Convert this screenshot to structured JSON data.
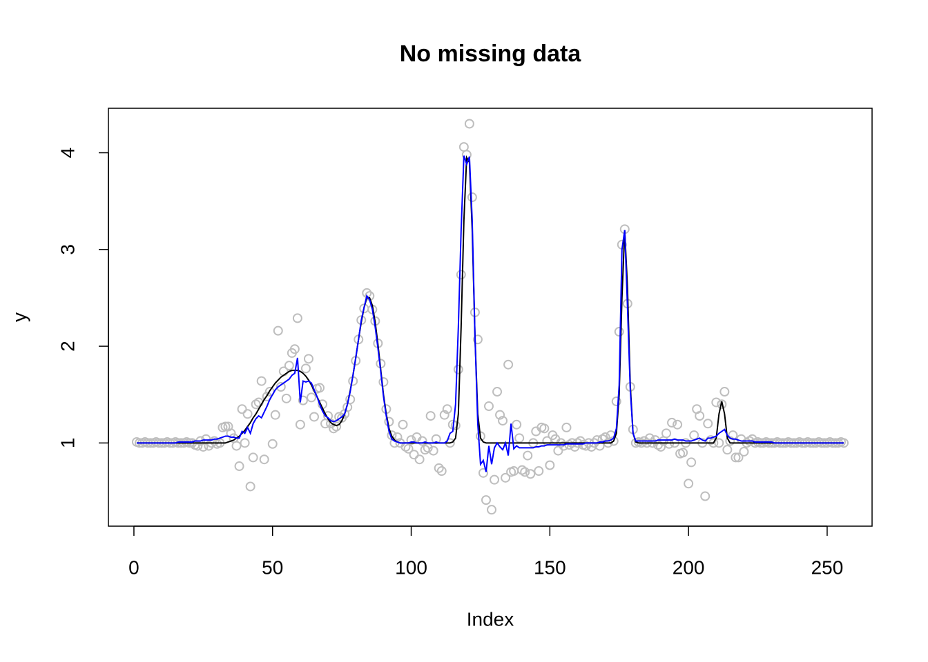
{
  "chart_data": {
    "type": "scatter",
    "title": "No missing data",
    "xlabel": "Index",
    "ylabel": "y",
    "xlim": [
      -9.2,
      266.2
    ],
    "ylim": [
      0.14,
      4.46
    ],
    "xticks": [
      0,
      50,
      100,
      150,
      200,
      250
    ],
    "yticks": [
      1,
      2,
      3,
      4
    ],
    "x": [
      1,
      2,
      3,
      4,
      5,
      6,
      7,
      8,
      9,
      10,
      11,
      12,
      13,
      14,
      15,
      16,
      17,
      18,
      19,
      20,
      21,
      22,
      23,
      24,
      25,
      26,
      27,
      28,
      29,
      30,
      31,
      32,
      33,
      34,
      35,
      36,
      37,
      38,
      39,
      40,
      41,
      42,
      43,
      44,
      45,
      46,
      47,
      48,
      49,
      50,
      51,
      52,
      53,
      54,
      55,
      56,
      57,
      58,
      59,
      60,
      61,
      62,
      63,
      64,
      65,
      66,
      67,
      68,
      69,
      70,
      71,
      72,
      73,
      74,
      75,
      76,
      77,
      78,
      79,
      80,
      81,
      82,
      83,
      84,
      85,
      86,
      87,
      88,
      89,
      90,
      91,
      92,
      93,
      94,
      95,
      96,
      97,
      98,
      99,
      100,
      101,
      102,
      103,
      104,
      105,
      106,
      107,
      108,
      109,
      110,
      111,
      112,
      113,
      114,
      115,
      116,
      117,
      118,
      119,
      120,
      121,
      122,
      123,
      124,
      125,
      126,
      127,
      128,
      129,
      130,
      131,
      132,
      133,
      134,
      135,
      136,
      137,
      138,
      139,
      140,
      141,
      142,
      143,
      144,
      145,
      146,
      147,
      148,
      149,
      150,
      151,
      152,
      153,
      154,
      155,
      156,
      157,
      158,
      159,
      160,
      161,
      162,
      163,
      164,
      165,
      166,
      167,
      168,
      169,
      170,
      171,
      172,
      173,
      174,
      175,
      176,
      177,
      178,
      179,
      180,
      181,
      182,
      183,
      184,
      185,
      186,
      187,
      188,
      189,
      190,
      191,
      192,
      193,
      194,
      195,
      196,
      197,
      198,
      199,
      200,
      201,
      202,
      203,
      204,
      205,
      206,
      207,
      208,
      209,
      210,
      211,
      212,
      213,
      214,
      215,
      216,
      217,
      218,
      219,
      220,
      221,
      222,
      223,
      224,
      225,
      226,
      227,
      228,
      229,
      230,
      231,
      232,
      233,
      234,
      235,
      236,
      237,
      238,
      239,
      240,
      241,
      242,
      243,
      244,
      245,
      246,
      247,
      248,
      249,
      250,
      251,
      252,
      253,
      254,
      255,
      256
    ],
    "series": [
      {
        "style": "points",
        "color": "#bebebe",
        "values": [
          1.01,
          1.0,
          1.0,
          1.01,
          1.0,
          1.0,
          1.0,
          1.01,
          1.0,
          1.0,
          1.0,
          1.01,
          1.0,
          1.0,
          1.01,
          1.0,
          1.0,
          1.0,
          1.01,
          1.0,
          1.0,
          0.98,
          0.97,
          1.02,
          0.96,
          1.04,
          0.97,
          1.0,
          1.02,
          0.99,
          1.0,
          1.16,
          1.17,
          1.17,
          1.1,
          1.05,
          0.97,
          0.76,
          1.35,
          1.0,
          1.3,
          0.55,
          0.85,
          1.4,
          1.42,
          1.64,
          0.83,
          1.48,
          1.53,
          0.99,
          1.29,
          2.16,
          1.58,
          1.74,
          1.46,
          1.8,
          1.93,
          1.97,
          2.29,
          1.19,
          1.44,
          1.77,
          1.87,
          1.47,
          1.27,
          1.56,
          1.57,
          1.4,
          1.2,
          1.28,
          1.2,
          1.15,
          1.17,
          1.27,
          1.26,
          1.3,
          1.37,
          1.45,
          1.64,
          1.85,
          2.07,
          2.27,
          2.39,
          2.55,
          2.52,
          2.38,
          2.26,
          2.03,
          1.82,
          1.63,
          1.35,
          1.22,
          1.08,
          1.0,
          1.06,
          1.0,
          1.19,
          0.96,
          0.94,
          1.03,
          0.88,
          1.06,
          0.83,
          1.02,
          0.93,
          0.95,
          1.28,
          0.92,
          1.04,
          0.74,
          0.71,
          1.29,
          1.35,
          1.0,
          1.19,
          1.18,
          1.76,
          2.74,
          4.06,
          3.98,
          4.3,
          3.54,
          2.35,
          2.07,
          1.07,
          0.69,
          0.41,
          1.38,
          0.31,
          0.62,
          1.53,
          1.29,
          1.23,
          0.64,
          1.81,
          0.7,
          0.71,
          1.19,
          1.05,
          0.72,
          0.7,
          0.87,
          0.68,
          1.0,
          1.12,
          0.71,
          1.16,
          1.15,
          1.02,
          0.77,
          1.08,
          1.04,
          0.92,
          1.0,
          0.97,
          1.16,
          0.98,
          1.0,
          0.96,
          1.0,
          1.02,
          0.98,
          0.97,
          1.0,
          0.96,
          1.0,
          1.03,
          0.97,
          1.04,
          1.06,
          1.0,
          1.08,
          1.02,
          1.43,
          2.15,
          3.05,
          3.21,
          2.44,
          1.58,
          1.14,
          1.0,
          1.01,
          1.0,
          1.02,
          1.0,
          1.05,
          1.0,
          1.03,
          0.98,
          0.96,
          1.02,
          1.1,
          0.99,
          1.21,
          1.0,
          1.19,
          0.89,
          0.9,
          1.0,
          0.58,
          0.8,
          1.08,
          1.35,
          1.28,
          1.0,
          0.45,
          1.2,
          1.03,
          1.0,
          1.42,
          1.0,
          1.4,
          1.53,
          0.93,
          1.02,
          1.08,
          0.85,
          0.85,
          1.04,
          0.91,
          1.0,
          1.02,
          1.04,
          1.0,
          1.01,
          1.0,
          1.0,
          1.01,
          1.0,
          1.0,
          1.0,
          1.01,
          1.0,
          1.0,
          1.0,
          1.01,
          1.0,
          1.0,
          1.0,
          1.01,
          1.0,
          1.0,
          1.01,
          1.0,
          1.0,
          1.0,
          1.01,
          1.0,
          1.0,
          1.0,
          1.01,
          1.0,
          1.0,
          1.0,
          1.01,
          1.0
        ]
      },
      {
        "style": "line",
        "color": "#000000",
        "values": [
          1,
          1,
          1,
          1,
          1,
          1,
          1,
          1,
          1,
          1,
          1,
          1,
          1,
          1,
          1,
          1,
          1,
          1,
          1,
          1,
          1,
          1,
          1,
          1,
          1,
          1,
          1,
          1,
          1,
          1,
          1,
          1,
          1,
          1.01,
          1.02,
          1.03,
          1.05,
          1.07,
          1.1,
          1.13,
          1.17,
          1.21,
          1.26,
          1.3,
          1.35,
          1.4,
          1.45,
          1.49,
          1.54,
          1.58,
          1.62,
          1.65,
          1.68,
          1.7,
          1.72,
          1.74,
          1.75,
          1.75,
          1.75,
          1.74,
          1.72,
          1.69,
          1.65,
          1.6,
          1.54,
          1.48,
          1.42,
          1.36,
          1.3,
          1.25,
          1.21,
          1.19,
          1.18,
          1.19,
          1.23,
          1.3,
          1.4,
          1.54,
          1.7,
          1.88,
          2.07,
          2.25,
          2.4,
          2.5,
          2.5,
          2.42,
          2.25,
          2.02,
          1.76,
          1.5,
          1.3,
          1.15,
          1.07,
          1.03,
          1.01,
          1,
          1,
          1,
          1,
          1,
          1,
          1,
          1,
          1,
          1,
          1,
          1,
          1,
          1,
          1,
          1,
          1,
          1,
          1,
          1.01,
          1.05,
          1.3,
          2.2,
          3.3,
          3.95,
          3.9,
          3.2,
          2.1,
          1.3,
          1.05,
          1.01,
          1,
          1,
          1,
          1,
          1,
          1,
          1,
          1,
          1,
          1,
          1,
          1,
          1,
          1,
          1,
          1,
          1,
          1,
          1,
          1,
          1,
          1,
          1,
          1,
          1,
          1,
          1,
          1,
          1,
          1,
          1,
          1,
          1,
          1,
          1,
          1,
          1,
          1,
          1,
          1,
          1,
          1,
          1,
          1,
          1,
          1,
          1.02,
          1.1,
          1.5,
          2.5,
          3.2,
          2.6,
          1.6,
          1.1,
          1.01,
          1,
          1,
          1,
          1,
          1,
          1,
          1,
          1,
          1,
          1,
          1,
          1,
          1,
          1,
          1,
          1,
          1,
          1,
          1,
          1,
          1,
          1,
          1,
          1,
          1,
          1,
          1,
          1,
          1.05,
          1.3,
          1.43,
          1.3,
          1.05,
          1,
          1,
          1,
          1,
          1,
          1,
          1,
          1,
          1,
          1,
          1,
          1,
          1,
          1,
          1,
          1,
          1,
          1,
          1,
          1,
          1,
          1,
          1,
          1,
          1,
          1,
          1,
          1,
          1,
          1,
          1,
          1,
          1,
          1,
          1,
          1,
          1,
          1,
          1,
          1,
          1,
          1
        ]
      },
      {
        "style": "line",
        "color": "#0000ff",
        "values": [
          1,
          1,
          1,
          1,
          1,
          1,
          1,
          1,
          1,
          1,
          1,
          1,
          1,
          1,
          1,
          1.01,
          1.01,
          1.01,
          1.01,
          1.01,
          1.01,
          1.02,
          1.02,
          1.02,
          1.03,
          1.03,
          1.03,
          1.03,
          1.04,
          1.04,
          1.05,
          1.06,
          1.07,
          1.07,
          1.06,
          1.06,
          1.05,
          1.05,
          1.12,
          1.1,
          1.16,
          1.1,
          1.2,
          1.25,
          1.28,
          1.26,
          1.32,
          1.38,
          1.45,
          1.5,
          1.55,
          1.58,
          1.6,
          1.62,
          1.64,
          1.66,
          1.7,
          1.72,
          1.88,
          1.42,
          1.64,
          1.63,
          1.64,
          1.62,
          1.55,
          1.48,
          1.4,
          1.33,
          1.28,
          1.26,
          1.23,
          1.22,
          1.23,
          1.25,
          1.27,
          1.3,
          1.4,
          1.53,
          1.7,
          1.88,
          2.07,
          2.27,
          2.4,
          2.52,
          2.48,
          2.38,
          2.2,
          1.98,
          1.74,
          1.48,
          1.28,
          1.12,
          1.04,
          1.02,
          1.01,
          1.0,
          1.0,
          1.0,
          1.0,
          1.01,
          1.01,
          1.0,
          1.0,
          1.0,
          1.01,
          1.0,
          1.0,
          1.0,
          1.01,
          1.0,
          1.0,
          1.0,
          1.02,
          1.1,
          1.12,
          1.4,
          2.2,
          3.2,
          3.97,
          3.88,
          3.96,
          3.3,
          2.1,
          1.2,
          0.78,
          0.82,
          0.7,
          0.97,
          0.78,
          0.95,
          1.0,
          0.96,
          0.93,
          1.0,
          0.87,
          1.2,
          0.94,
          0.97,
          0.95,
          0.95,
          0.95,
          0.95,
          0.95,
          0.95,
          0.96,
          0.96,
          0.97,
          0.97,
          0.98,
          0.98,
          0.98,
          0.98,
          0.98,
          0.98,
          0.98,
          0.99,
          0.99,
          0.99,
          0.99,
          0.99,
          0.99,
          0.99,
          1.0,
          1.0,
          1.0,
          1.0,
          1.0,
          1.01,
          1.01,
          1.02,
          1.02,
          1.03,
          1.05,
          1.15,
          1.6,
          3.0,
          3.2,
          2.4,
          1.55,
          1.1,
          1.02,
          1.02,
          1.02,
          1.02,
          1.02,
          1.02,
          1.02,
          1.02,
          1.03,
          1.03,
          1.03,
          1.03,
          1.03,
          1.03,
          1.04,
          1.03,
          1.03,
          1.03,
          1.02,
          1.02,
          1.02,
          1.03,
          1.04,
          1.05,
          1.03,
          1.02,
          1.05,
          1.05,
          1.06,
          1.07,
          1.1,
          1.12,
          1.14,
          1.08,
          1.05,
          1.04,
          1.04,
          1.03,
          1.02,
          1.02,
          1.02,
          1.02,
          1.02,
          1.01,
          1.01,
          1.01,
          1.01,
          1.01,
          1.01,
          1.01,
          1,
          1,
          1,
          1,
          1,
          1,
          1,
          1,
          1,
          1,
          1,
          1,
          1,
          1,
          1,
          1,
          1,
          1,
          1,
          1,
          1,
          1,
          1,
          1,
          1,
          1
        ]
      }
    ]
  }
}
